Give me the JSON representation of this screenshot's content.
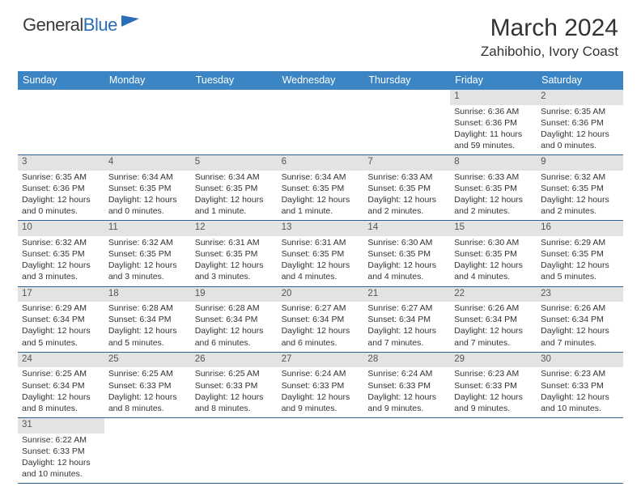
{
  "brand": {
    "part1": "General",
    "part2": "Blue"
  },
  "colors": {
    "header_bg": "#3b85c4",
    "header_fg": "#ffffff",
    "daynum_bg": "#e3e3e3",
    "daynum_fg": "#555555",
    "row_border": "#2f5f94",
    "text": "#333333",
    "logo_dark": "#3a3a3a",
    "logo_blue": "#2a6db5",
    "flag_fill": "#2a6db5"
  },
  "typography": {
    "month_title_pt": 30,
    "location_pt": 17,
    "weekday_pt": 12.5,
    "daynum_pt": 11.5,
    "body_pt": 10.5,
    "logo_pt": 22
  },
  "title": "March 2024",
  "location": "Zahibohio, Ivory Coast",
  "weekdays": [
    "Sunday",
    "Monday",
    "Tuesday",
    "Wednesday",
    "Thursday",
    "Friday",
    "Saturday"
  ],
  "calendar": {
    "type": "table",
    "columns": 7,
    "first_weekday_index": 5,
    "days_in_month": 31,
    "weeks": [
      [
        null,
        null,
        null,
        null,
        null,
        {
          "n": 1,
          "sunrise": "Sunrise: 6:36 AM",
          "sunset": "Sunset: 6:36 PM",
          "daylight": "Daylight: 11 hours and 59 minutes."
        },
        {
          "n": 2,
          "sunrise": "Sunrise: 6:35 AM",
          "sunset": "Sunset: 6:36 PM",
          "daylight": "Daylight: 12 hours and 0 minutes."
        }
      ],
      [
        {
          "n": 3,
          "sunrise": "Sunrise: 6:35 AM",
          "sunset": "Sunset: 6:36 PM",
          "daylight": "Daylight: 12 hours and 0 minutes."
        },
        {
          "n": 4,
          "sunrise": "Sunrise: 6:34 AM",
          "sunset": "Sunset: 6:35 PM",
          "daylight": "Daylight: 12 hours and 0 minutes."
        },
        {
          "n": 5,
          "sunrise": "Sunrise: 6:34 AM",
          "sunset": "Sunset: 6:35 PM",
          "daylight": "Daylight: 12 hours and 1 minute."
        },
        {
          "n": 6,
          "sunrise": "Sunrise: 6:34 AM",
          "sunset": "Sunset: 6:35 PM",
          "daylight": "Daylight: 12 hours and 1 minute."
        },
        {
          "n": 7,
          "sunrise": "Sunrise: 6:33 AM",
          "sunset": "Sunset: 6:35 PM",
          "daylight": "Daylight: 12 hours and 2 minutes."
        },
        {
          "n": 8,
          "sunrise": "Sunrise: 6:33 AM",
          "sunset": "Sunset: 6:35 PM",
          "daylight": "Daylight: 12 hours and 2 minutes."
        },
        {
          "n": 9,
          "sunrise": "Sunrise: 6:32 AM",
          "sunset": "Sunset: 6:35 PM",
          "daylight": "Daylight: 12 hours and 2 minutes."
        }
      ],
      [
        {
          "n": 10,
          "sunrise": "Sunrise: 6:32 AM",
          "sunset": "Sunset: 6:35 PM",
          "daylight": "Daylight: 12 hours and 3 minutes."
        },
        {
          "n": 11,
          "sunrise": "Sunrise: 6:32 AM",
          "sunset": "Sunset: 6:35 PM",
          "daylight": "Daylight: 12 hours and 3 minutes."
        },
        {
          "n": 12,
          "sunrise": "Sunrise: 6:31 AM",
          "sunset": "Sunset: 6:35 PM",
          "daylight": "Daylight: 12 hours and 3 minutes."
        },
        {
          "n": 13,
          "sunrise": "Sunrise: 6:31 AM",
          "sunset": "Sunset: 6:35 PM",
          "daylight": "Daylight: 12 hours and 4 minutes."
        },
        {
          "n": 14,
          "sunrise": "Sunrise: 6:30 AM",
          "sunset": "Sunset: 6:35 PM",
          "daylight": "Daylight: 12 hours and 4 minutes."
        },
        {
          "n": 15,
          "sunrise": "Sunrise: 6:30 AM",
          "sunset": "Sunset: 6:35 PM",
          "daylight": "Daylight: 12 hours and 4 minutes."
        },
        {
          "n": 16,
          "sunrise": "Sunrise: 6:29 AM",
          "sunset": "Sunset: 6:35 PM",
          "daylight": "Daylight: 12 hours and 5 minutes."
        }
      ],
      [
        {
          "n": 17,
          "sunrise": "Sunrise: 6:29 AM",
          "sunset": "Sunset: 6:34 PM",
          "daylight": "Daylight: 12 hours and 5 minutes."
        },
        {
          "n": 18,
          "sunrise": "Sunrise: 6:28 AM",
          "sunset": "Sunset: 6:34 PM",
          "daylight": "Daylight: 12 hours and 5 minutes."
        },
        {
          "n": 19,
          "sunrise": "Sunrise: 6:28 AM",
          "sunset": "Sunset: 6:34 PM",
          "daylight": "Daylight: 12 hours and 6 minutes."
        },
        {
          "n": 20,
          "sunrise": "Sunrise: 6:27 AM",
          "sunset": "Sunset: 6:34 PM",
          "daylight": "Daylight: 12 hours and 6 minutes."
        },
        {
          "n": 21,
          "sunrise": "Sunrise: 6:27 AM",
          "sunset": "Sunset: 6:34 PM",
          "daylight": "Daylight: 12 hours and 7 minutes."
        },
        {
          "n": 22,
          "sunrise": "Sunrise: 6:26 AM",
          "sunset": "Sunset: 6:34 PM",
          "daylight": "Daylight: 12 hours and 7 minutes."
        },
        {
          "n": 23,
          "sunrise": "Sunrise: 6:26 AM",
          "sunset": "Sunset: 6:34 PM",
          "daylight": "Daylight: 12 hours and 7 minutes."
        }
      ],
      [
        {
          "n": 24,
          "sunrise": "Sunrise: 6:25 AM",
          "sunset": "Sunset: 6:34 PM",
          "daylight": "Daylight: 12 hours and 8 minutes."
        },
        {
          "n": 25,
          "sunrise": "Sunrise: 6:25 AM",
          "sunset": "Sunset: 6:33 PM",
          "daylight": "Daylight: 12 hours and 8 minutes."
        },
        {
          "n": 26,
          "sunrise": "Sunrise: 6:25 AM",
          "sunset": "Sunset: 6:33 PM",
          "daylight": "Daylight: 12 hours and 8 minutes."
        },
        {
          "n": 27,
          "sunrise": "Sunrise: 6:24 AM",
          "sunset": "Sunset: 6:33 PM",
          "daylight": "Daylight: 12 hours and 9 minutes."
        },
        {
          "n": 28,
          "sunrise": "Sunrise: 6:24 AM",
          "sunset": "Sunset: 6:33 PM",
          "daylight": "Daylight: 12 hours and 9 minutes."
        },
        {
          "n": 29,
          "sunrise": "Sunrise: 6:23 AM",
          "sunset": "Sunset: 6:33 PM",
          "daylight": "Daylight: 12 hours and 9 minutes."
        },
        {
          "n": 30,
          "sunrise": "Sunrise: 6:23 AM",
          "sunset": "Sunset: 6:33 PM",
          "daylight": "Daylight: 12 hours and 10 minutes."
        }
      ],
      [
        {
          "n": 31,
          "sunrise": "Sunrise: 6:22 AM",
          "sunset": "Sunset: 6:33 PM",
          "daylight": "Daylight: 12 hours and 10 minutes."
        },
        null,
        null,
        null,
        null,
        null,
        null
      ]
    ]
  }
}
